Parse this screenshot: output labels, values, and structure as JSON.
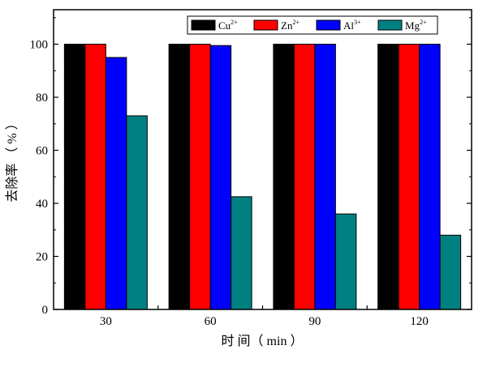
{
  "chart_data": {
    "type": "bar",
    "categories": [
      "30",
      "60",
      "90",
      "120"
    ],
    "series": [
      {
        "name": "Cu",
        "superscript": "2+",
        "color": "#000000",
        "values": [
          100,
          100,
          100,
          100
        ]
      },
      {
        "name": "Zn",
        "superscript": "2+",
        "color": "#ff0000",
        "values": [
          100,
          100,
          100,
          100
        ]
      },
      {
        "name": "Al",
        "superscript": "3+",
        "color": "#0000ff",
        "values": [
          95,
          99.5,
          100,
          100
        ]
      },
      {
        "name": "Mg",
        "superscript": "2+",
        "color": "#008080",
        "values": [
          73,
          42.5,
          36,
          28
        ]
      }
    ],
    "xlabel": "时 间（ min ）",
    "ylabel": "去除率 （ % ）",
    "ylim": [
      0,
      113
    ],
    "yticks": [
      "0",
      "20",
      "40",
      "60",
      "80",
      "100"
    ],
    "grid": false,
    "legend_position": "top-right"
  }
}
